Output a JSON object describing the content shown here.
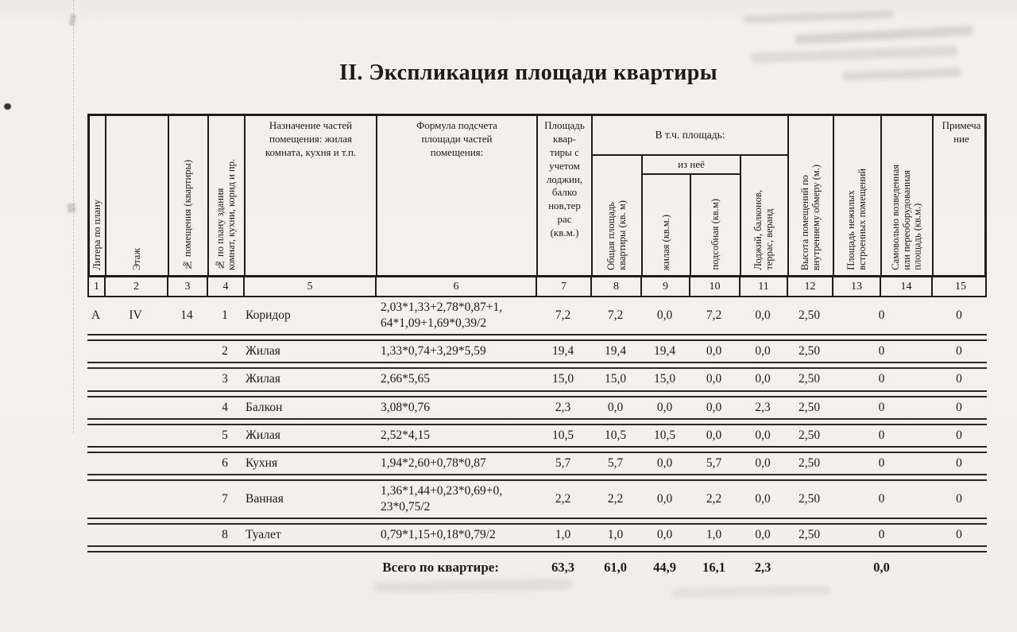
{
  "title": "II. Экспликация площади квартиры",
  "table": {
    "headers": {
      "col1": "Литера по плану",
      "col2": "Этаж",
      "col3": "№ помещения (квартиры)",
      "col4": "№ по плану здания\nкомнат, кухни, корид и пр.",
      "col5": "Назначение частей\nпомещения: жилая\nкомната, кухня и т.п.",
      "col6": "Формула подсчета\nплощади частей\nпомещения:",
      "col7": "Площадь\nквар-\nтиры с\nучетом\nлоджии,\nбалко\nнов,тер\nрас\n(кв.м.)",
      "group_vtch": "В т.ч. площадь:",
      "col8": "Общая площадь\nквартиры (кв. м)",
      "group_iznee": "из неё",
      "col9": "жилая (кв.м.)",
      "col10": "подсобная (кв.м)",
      "col11": "Лоджий, балконов,\nтеррас, веранд",
      "col12": "Высота помещений по\nвнутреннему обмеру (м.)",
      "col13": "Площадь нежилых\nвстроенных помещений",
      "col14": "Самовольно возведенная\nили переоборудованная\nплощадь (кв.м.)",
      "col15": "Примеча\nние"
    },
    "column_numbers": [
      "1",
      "2",
      "3",
      "4",
      "5",
      "6",
      "7",
      "8",
      "9",
      "10",
      "11",
      "12",
      "13",
      "14",
      "15"
    ],
    "rows": [
      {
        "litera": "А",
        "floor": "IV",
        "apt": "14",
        "num": "1",
        "name": "Коридор",
        "formula": "2,03*1,33+2,78*0,87+1,\n64*1,09+1,69*0,39/2",
        "values": [
          "7,2",
          "7,2",
          "0,0",
          "7,2",
          "0,0",
          "2,50",
          "0",
          "0"
        ]
      },
      {
        "litera": "",
        "floor": "",
        "apt": "",
        "num": "2",
        "name": "Жилая",
        "formula": "1,33*0,74+3,29*5,59",
        "values": [
          "19,4",
          "19,4",
          "19,4",
          "0,0",
          "0,0",
          "2,50",
          "0",
          "0"
        ]
      },
      {
        "litera": "",
        "floor": "",
        "apt": "",
        "num": "3",
        "name": "Жилая",
        "formula": "2,66*5,65",
        "values": [
          "15,0",
          "15,0",
          "15,0",
          "0,0",
          "0,0",
          "2,50",
          "0",
          "0"
        ]
      },
      {
        "litera": "",
        "floor": "",
        "apt": "",
        "num": "4",
        "name": "Балкон",
        "formula": "3,08*0,76",
        "values": [
          "2,3",
          "0,0",
          "0,0",
          "0,0",
          "2,3",
          "2,50",
          "0",
          "0"
        ]
      },
      {
        "litera": "",
        "floor": "",
        "apt": "",
        "num": "5",
        "name": "Жилая",
        "formula": "2,52*4,15",
        "values": [
          "10,5",
          "10,5",
          "10,5",
          "0,0",
          "0,0",
          "2,50",
          "0",
          "0"
        ]
      },
      {
        "litera": "",
        "floor": "",
        "apt": "",
        "num": "6",
        "name": "Кухня",
        "formula": "1,94*2,60+0,78*0,87",
        "values": [
          "5,7",
          "5,7",
          "0,0",
          "5,7",
          "0,0",
          "2,50",
          "0",
          "0"
        ]
      },
      {
        "litera": "",
        "floor": "",
        "apt": "",
        "num": "7",
        "name": "Ванная",
        "formula": "1,36*1,44+0,23*0,69+0,\n23*0,75/2",
        "values": [
          "2,2",
          "2,2",
          "0,0",
          "2,2",
          "0,0",
          "2,50",
          "0",
          "0"
        ]
      },
      {
        "litera": "",
        "floor": "",
        "apt": "",
        "num": "8",
        "name": "Туалет",
        "formula": "0,79*1,15+0,18*0,79/2",
        "values": [
          "1,0",
          "1,0",
          "0,0",
          "1,0",
          "0,0",
          "2,50",
          "0",
          "0"
        ]
      }
    ],
    "totals": {
      "label": "Всего по квартире:",
      "values": [
        "63,3",
        "61,0",
        "44,9",
        "16,1",
        "2,3",
        "",
        "0,0",
        ""
      ]
    }
  }
}
